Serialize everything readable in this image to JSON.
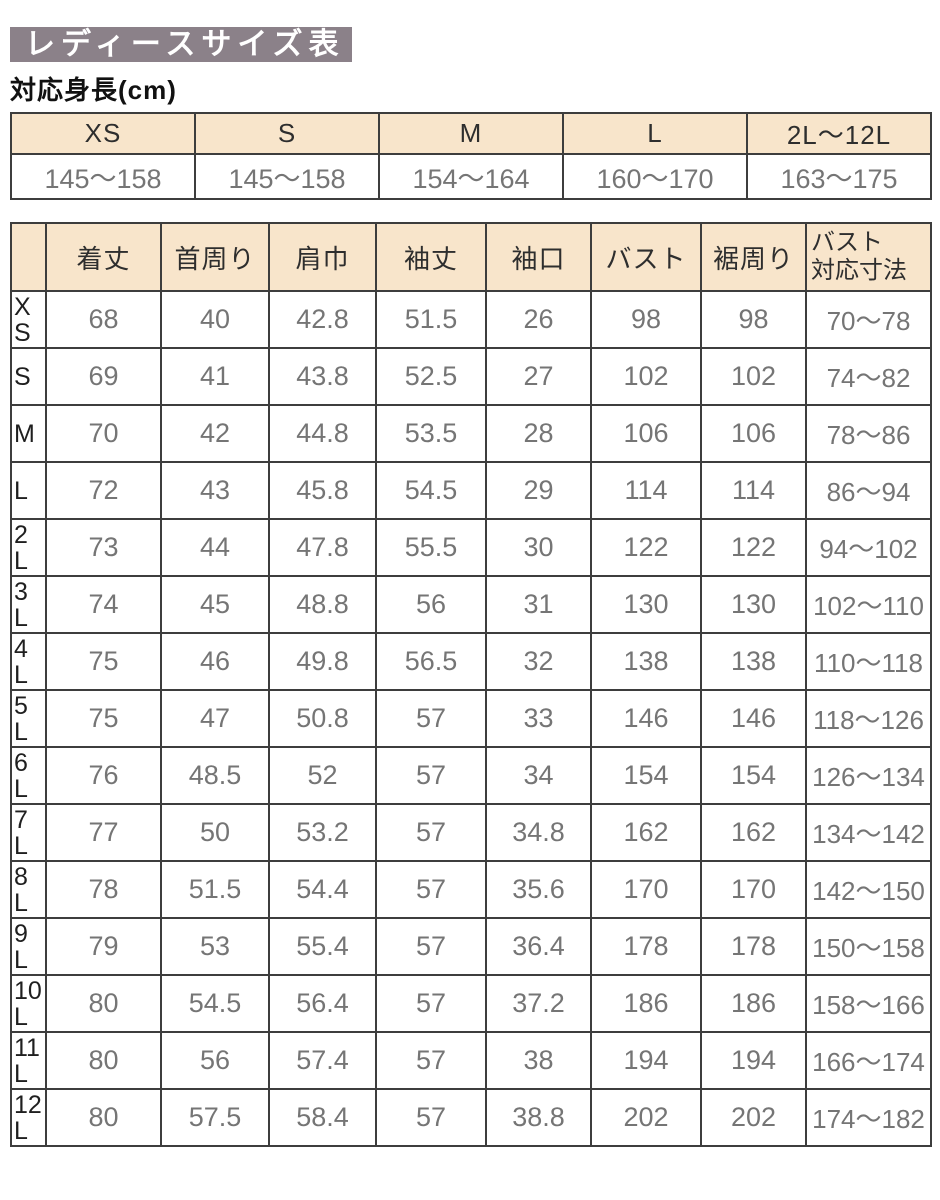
{
  "page": {
    "title": "レディースサイズ表",
    "subtitle": "対応身長(cm)"
  },
  "colors": {
    "title_bg": "#8b8189",
    "title_text": "#ffffff",
    "header_bg": "#f8e5cb",
    "border": "#3d3d3d",
    "data_text": "#757575",
    "label_text": "#1f1f1f"
  },
  "height_table": {
    "sizes": [
      "XS",
      "S",
      "M",
      "L",
      "2L〜12L"
    ],
    "ranges": [
      "145〜158",
      "145〜158",
      "154〜164",
      "160〜170",
      "163〜175"
    ]
  },
  "size_table": {
    "columns": [
      [
        "着丈"
      ],
      [
        "首周り"
      ],
      [
        "肩巾"
      ],
      [
        "袖丈"
      ],
      [
        "袖口"
      ],
      [
        "バスト"
      ],
      [
        "裾周り"
      ],
      [
        "バスト",
        "対応寸法"
      ]
    ],
    "rows": [
      {
        "size": "XS",
        "values": [
          "68",
          "40",
          "42.8",
          "51.5",
          "26",
          "98",
          "98",
          "70〜78"
        ]
      },
      {
        "size": "S",
        "values": [
          "69",
          "41",
          "43.8",
          "52.5",
          "27",
          "102",
          "102",
          "74〜82"
        ]
      },
      {
        "size": "M",
        "values": [
          "70",
          "42",
          "44.8",
          "53.5",
          "28",
          "106",
          "106",
          "78〜86"
        ]
      },
      {
        "size": "L",
        "values": [
          "72",
          "43",
          "45.8",
          "54.5",
          "29",
          "114",
          "114",
          "86〜94"
        ]
      },
      {
        "size": "2L",
        "values": [
          "73",
          "44",
          "47.8",
          "55.5",
          "30",
          "122",
          "122",
          "94〜102"
        ]
      },
      {
        "size": "3L",
        "values": [
          "74",
          "45",
          "48.8",
          "56",
          "31",
          "130",
          "130",
          "102〜110"
        ]
      },
      {
        "size": "4L",
        "values": [
          "75",
          "46",
          "49.8",
          "56.5",
          "32",
          "138",
          "138",
          "110〜118"
        ]
      },
      {
        "size": "5L",
        "values": [
          "75",
          "47",
          "50.8",
          "57",
          "33",
          "146",
          "146",
          "118〜126"
        ]
      },
      {
        "size": "6L",
        "values": [
          "76",
          "48.5",
          "52",
          "57",
          "34",
          "154",
          "154",
          "126〜134"
        ]
      },
      {
        "size": "7L",
        "values": [
          "77",
          "50",
          "53.2",
          "57",
          "34.8",
          "162",
          "162",
          "134〜142"
        ]
      },
      {
        "size": "8L",
        "values": [
          "78",
          "51.5",
          "54.4",
          "57",
          "35.6",
          "170",
          "170",
          "142〜150"
        ]
      },
      {
        "size": "9L",
        "values": [
          "79",
          "53",
          "55.4",
          "57",
          "36.4",
          "178",
          "178",
          "150〜158"
        ]
      },
      {
        "size": "10L",
        "values": [
          "80",
          "54.5",
          "56.4",
          "57",
          "37.2",
          "186",
          "186",
          "158〜166"
        ]
      },
      {
        "size": "11L",
        "values": [
          "80",
          "56",
          "57.4",
          "57",
          "38",
          "194",
          "194",
          "166〜174"
        ]
      },
      {
        "size": "12L",
        "values": [
          "80",
          "57.5",
          "58.4",
          "57",
          "38.8",
          "202",
          "202",
          "174〜182"
        ]
      }
    ]
  }
}
